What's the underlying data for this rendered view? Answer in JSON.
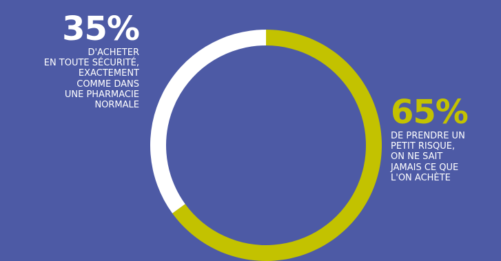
{
  "chart_data": {
    "type": "pie",
    "style": "donut",
    "start_angle_deg": 0,
    "direction": "clockwise",
    "slices": [
      {
        "label_value": "65%",
        "value": 65,
        "description": "DE PRENDRE UN\nPETIT RISQUE,\nON NE SAIT\nJAMAIS CE QUE\nL'ON ACHÈTE",
        "color": "#c3c200"
      },
      {
        "label_value": "35%",
        "value": 35,
        "description": "D'ACHETER\nEN TOUTE SÉCURITÉ,\nEXACTEMENT\nCOMME DANS\nUNE PHARMACIE\nNORMALE",
        "color": "#ffffff"
      }
    ]
  },
  "colors": {
    "background": "#4d5aa5",
    "accent": "#c3c200",
    "white": "#ffffff"
  }
}
